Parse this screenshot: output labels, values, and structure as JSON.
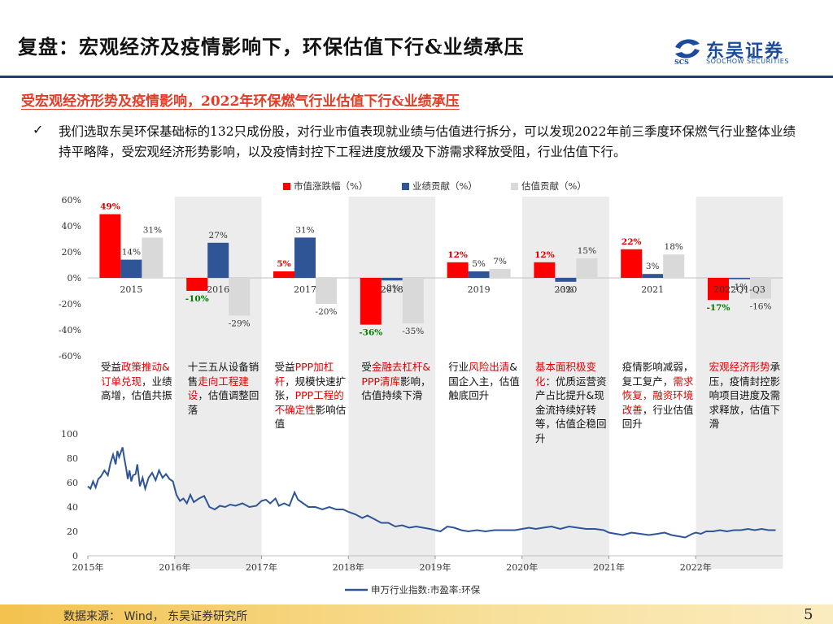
{
  "header": {
    "title": "复盘：宏观经济及疫情影响下，环保估值下行&业绩承压",
    "logo_cn": "东吴证券",
    "logo_en": "SOOCHOW SECURITIES",
    "logo_mark": "SCS"
  },
  "subtitle": "受宏观经济形势及疫情影响，2022年环保燃气行业估值下行&业绩承压",
  "bullet": {
    "check": "✓",
    "text": "我们选取东吴环保基础标的132只成份股，对行业市值表现就业绩与估值进行拆分，可以发现2022年前三季度环保燃气行业整体业绩持平略降，受宏观经济形势影响，以及疫情封控下工程进度放缓及下游需求释放受阻，行业估值下行。"
  },
  "colors": {
    "market": "#ff0000",
    "earnings": "#2f5597",
    "valuation": "#d9d9d9",
    "band": "#ececec",
    "line": "#2f5597",
    "label_red": "#e00000",
    "label_green": "#008000"
  },
  "chart_data": [
    {
      "type": "bar",
      "categories": [
        "2015",
        "2016",
        "2017",
        "2018",
        "2019",
        "2020",
        "2021",
        "2022Q1-Q3"
      ],
      "series": [
        {
          "name": "市值涨跌幅（%）",
          "values": [
            49,
            -10,
            5,
            -36,
            12,
            12,
            22,
            -17
          ]
        },
        {
          "name": "业绩贡献（%）",
          "values": [
            14,
            27,
            31,
            -2,
            5,
            -3,
            3,
            -1
          ]
        },
        {
          "name": "估值贡献（%）",
          "values": [
            31,
            -29,
            -20,
            -35,
            7,
            15,
            18,
            -16
          ]
        }
      ],
      "ylim": [
        -60,
        60
      ],
      "yticks": [
        "60%",
        "40%",
        "20%",
        "0%",
        "-20%",
        "-40%",
        "-60%"
      ],
      "shaded_categories": [
        1,
        3,
        5,
        7
      ],
      "legend_position": "top"
    },
    {
      "type": "line",
      "series": [
        {
          "name": "申万行业指数:市盈率:环保",
          "points": [
            [
              2015.0,
              57
            ],
            [
              2015.03,
              55
            ],
            [
              2015.06,
              61
            ],
            [
              2015.09,
              56
            ],
            [
              2015.12,
              63
            ],
            [
              2015.15,
              65
            ],
            [
              2015.19,
              70
            ],
            [
              2015.23,
              66
            ],
            [
              2015.26,
              76
            ],
            [
              2015.29,
              83
            ],
            [
              2015.32,
              75
            ],
            [
              2015.34,
              86
            ],
            [
              2015.36,
              81
            ],
            [
              2015.38,
              85
            ],
            [
              2015.4,
              89
            ],
            [
              2015.42,
              80
            ],
            [
              2015.44,
              72
            ],
            [
              2015.46,
              63
            ],
            [
              2015.48,
              70
            ],
            [
              2015.5,
              61
            ],
            [
              2015.52,
              66
            ],
            [
              2015.55,
              67
            ],
            [
              2015.57,
              75
            ],
            [
              2015.6,
              57
            ],
            [
              2015.63,
              64
            ],
            [
              2015.66,
              55
            ],
            [
              2015.7,
              64
            ],
            [
              2015.74,
              68
            ],
            [
              2015.78,
              62
            ],
            [
              2015.82,
              70
            ],
            [
              2015.86,
              64
            ],
            [
              2015.9,
              67
            ],
            [
              2015.94,
              63
            ],
            [
              2015.98,
              61
            ],
            [
              2016.02,
              50
            ],
            [
              2016.06,
              45
            ],
            [
              2016.1,
              47
            ],
            [
              2016.14,
              43
            ],
            [
              2016.18,
              50
            ],
            [
              2016.22,
              44
            ],
            [
              2016.28,
              47
            ],
            [
              2016.34,
              49
            ],
            [
              2016.4,
              40
            ],
            [
              2016.46,
              38
            ],
            [
              2016.52,
              41
            ],
            [
              2016.58,
              40
            ],
            [
              2016.64,
              42
            ],
            [
              2016.7,
              41
            ],
            [
              2016.78,
              43
            ],
            [
              2016.86,
              40
            ],
            [
              2016.94,
              41
            ],
            [
              2017.0,
              45
            ],
            [
              2017.05,
              46
            ],
            [
              2017.1,
              43
            ],
            [
              2017.16,
              47
            ],
            [
              2017.2,
              41
            ],
            [
              2017.26,
              43
            ],
            [
              2017.32,
              41
            ],
            [
              2017.38,
              52
            ],
            [
              2017.42,
              46
            ],
            [
              2017.48,
              43
            ],
            [
              2017.54,
              40
            ],
            [
              2017.62,
              40
            ],
            [
              2017.7,
              38
            ],
            [
              2017.78,
              40
            ],
            [
              2017.86,
              38
            ],
            [
              2017.94,
              38
            ],
            [
              2018.0,
              36
            ],
            [
              2018.08,
              34
            ],
            [
              2018.16,
              31
            ],
            [
              2018.22,
              33
            ],
            [
              2018.3,
              30
            ],
            [
              2018.38,
              27
            ],
            [
              2018.46,
              27
            ],
            [
              2018.54,
              24
            ],
            [
              2018.62,
              25
            ],
            [
              2018.7,
              23
            ],
            [
              2018.78,
              24
            ],
            [
              2018.86,
              23
            ],
            [
              2018.94,
              22
            ],
            [
              2019.0,
              21
            ],
            [
              2019.06,
              20
            ],
            [
              2019.14,
              24
            ],
            [
              2019.22,
              23
            ],
            [
              2019.3,
              21
            ],
            [
              2019.38,
              20
            ],
            [
              2019.48,
              21
            ],
            [
              2019.58,
              20
            ],
            [
              2019.68,
              21
            ],
            [
              2019.8,
              21
            ],
            [
              2019.92,
              21
            ],
            [
              2020.0,
              22
            ],
            [
              2020.08,
              23
            ],
            [
              2020.16,
              22
            ],
            [
              2020.24,
              23
            ],
            [
              2020.34,
              24
            ],
            [
              2020.44,
              22
            ],
            [
              2020.54,
              24
            ],
            [
              2020.64,
              23
            ],
            [
              2020.74,
              22
            ],
            [
              2020.84,
              22
            ],
            [
              2020.94,
              21
            ],
            [
              2021.0,
              19
            ],
            [
              2021.08,
              18
            ],
            [
              2021.16,
              17
            ],
            [
              2021.26,
              19
            ],
            [
              2021.36,
              18
            ],
            [
              2021.46,
              17
            ],
            [
              2021.56,
              18
            ],
            [
              2021.64,
              19
            ],
            [
              2021.72,
              17
            ],
            [
              2021.8,
              16
            ],
            [
              2021.88,
              15
            ],
            [
              2021.96,
              18
            ],
            [
              2022.0,
              19
            ],
            [
              2022.06,
              18
            ],
            [
              2022.12,
              20
            ],
            [
              2022.2,
              20
            ],
            [
              2022.28,
              21
            ],
            [
              2022.36,
              20
            ],
            [
              2022.44,
              21
            ],
            [
              2022.52,
              21
            ],
            [
              2022.6,
              22
            ],
            [
              2022.68,
              21
            ],
            [
              2022.76,
              22
            ],
            [
              2022.84,
              21
            ],
            [
              2022.92,
              21
            ]
          ]
        }
      ],
      "xticks": [
        "2015年",
        "2016年",
        "2017年",
        "2018年",
        "2019年",
        "2020年",
        "2021年",
        "2022年"
      ],
      "ylim": [
        0,
        100
      ],
      "yticks": [
        "100",
        "80",
        "60",
        "40",
        "20",
        "0"
      ],
      "legend_position": "bottom"
    }
  ],
  "annotations": [
    {
      "parts": [
        {
          "t": "受益",
          "red": false
        },
        {
          "t": "政策推动&订单兑现",
          "red": true
        },
        {
          "t": "，业绩高增，估值共振",
          "red": false
        }
      ]
    },
    {
      "parts": [
        {
          "t": "十三五从设备销售",
          "red": false
        },
        {
          "t": "走向工程建设",
          "red": true
        },
        {
          "t": "，估值调整回落",
          "red": false
        }
      ]
    },
    {
      "parts": [
        {
          "t": "受益",
          "red": false
        },
        {
          "t": "PPP加杠杆",
          "red": true
        },
        {
          "t": "，规模快速扩张，",
          "red": false
        },
        {
          "t": "PPP工程的不确定性",
          "red": true
        },
        {
          "t": "影响估值",
          "red": false
        }
      ]
    },
    {
      "parts": [
        {
          "t": "受",
          "red": false
        },
        {
          "t": "金融去杠杆&PPP清库",
          "red": true
        },
        {
          "t": "影响，估值持续下滑",
          "red": false
        }
      ]
    },
    {
      "parts": [
        {
          "t": "行业",
          "red": false
        },
        {
          "t": "风险出清",
          "red": true
        },
        {
          "t": "&国企入主，估值触底回升",
          "red": false
        }
      ]
    },
    {
      "parts": [
        {
          "t": "基本面积极变化",
          "red": true
        },
        {
          "t": "：优质运营资产占比提升&现金流持续好转等，估值企稳回升",
          "red": false
        }
      ]
    },
    {
      "parts": [
        {
          "t": "疫情影响减弱，复工复产，",
          "red": false
        },
        {
          "t": "需求恢复，融资环境改善",
          "red": true
        },
        {
          "t": "，行业估值回升",
          "red": false
        }
      ]
    },
    {
      "parts": [
        {
          "t": "宏观经济形势",
          "red": true
        },
        {
          "t": "承压，疫情封控影响项目进度及需求释放，估值下滑",
          "red": false
        }
      ]
    }
  ],
  "footer": {
    "source": "数据来源： Wind， 东吴证券研究所",
    "page": "5"
  }
}
